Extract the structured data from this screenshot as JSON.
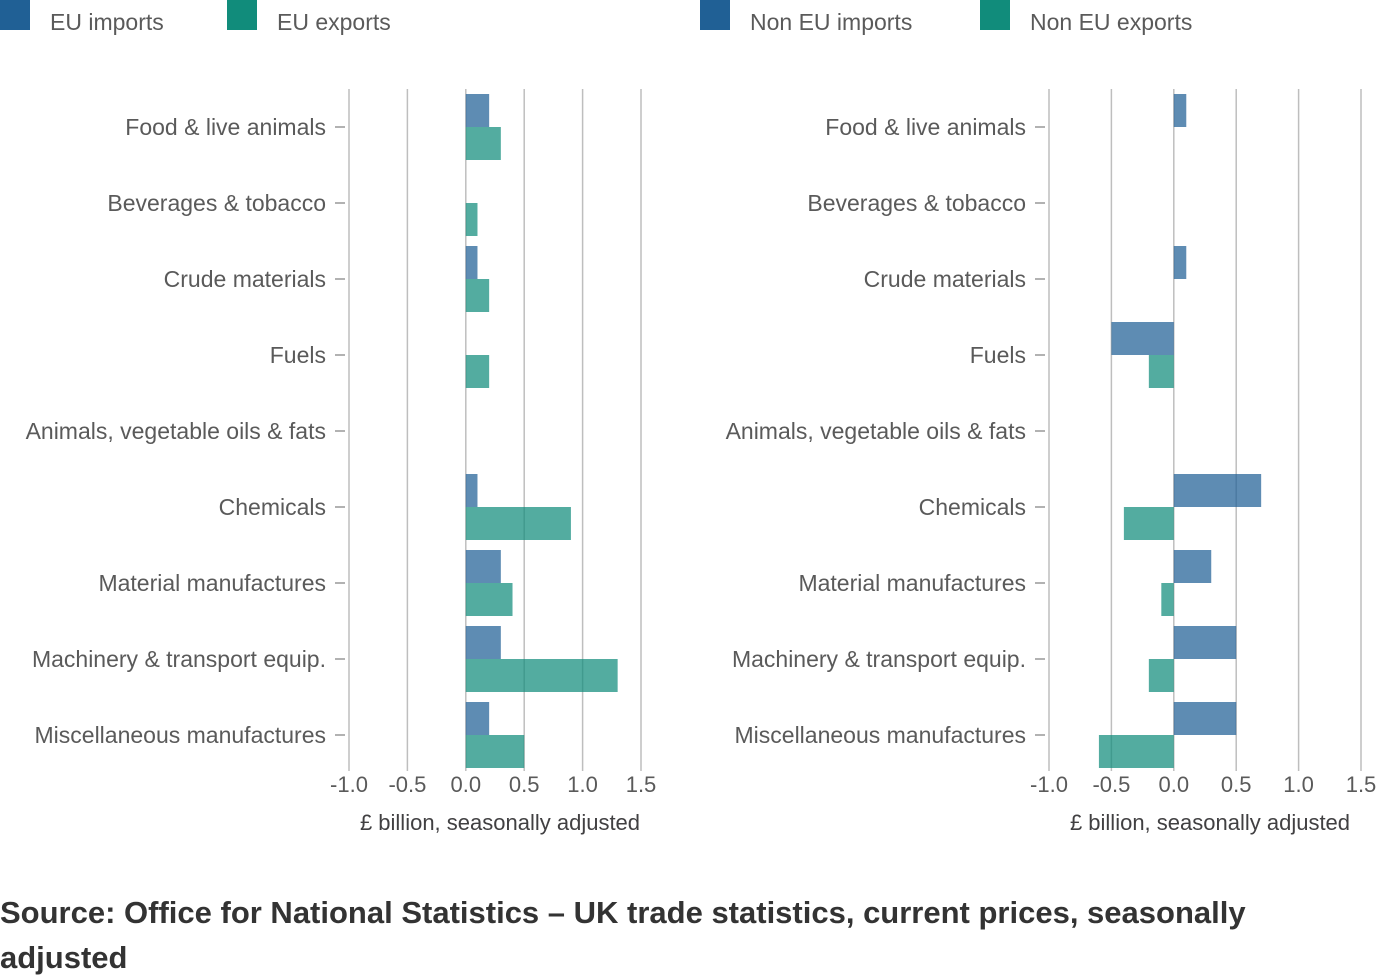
{
  "colors": {
    "imports": "#206095",
    "exports": "#118c7b",
    "grid": "#bebebe",
    "axis_tick": "#999999"
  },
  "source_text": "Source: Office for National Statistics – UK trade statistics, current prices, seasonally adjusted",
  "chart_data": [
    {
      "type": "bar",
      "orientation": "horizontal",
      "title": "",
      "xlabel": "£ billion, seasonally adjusted",
      "xlim": [
        -1.0,
        1.5
      ],
      "x_ticks": [
        "-1.0",
        "-0.5",
        "0.0",
        "0.5",
        "1.0",
        "1.5"
      ],
      "grid": true,
      "legend_position": "top-left",
      "categories": [
        "Food & live animals",
        "Beverages & tobacco",
        "Crude materials",
        "Fuels",
        "Animals, vegetable oils & fats",
        "Chemicals",
        "Material manufactures",
        "Machinery & transport equip.",
        "Miscellaneous manufactures"
      ],
      "series": [
        {
          "name": "EU imports",
          "color_key": "imports",
          "values": [
            0.2,
            0.0,
            0.1,
            0.0,
            0.0,
            0.1,
            0.3,
            0.3,
            0.2
          ]
        },
        {
          "name": "EU exports",
          "color_key": "exports",
          "values": [
            0.3,
            0.1,
            0.2,
            0.2,
            0.0,
            0.9,
            0.4,
            1.3,
            0.5
          ]
        }
      ]
    },
    {
      "type": "bar",
      "orientation": "horizontal",
      "title": "",
      "xlabel": "£ billion, seasonally adjusted",
      "xlim": [
        -1.0,
        1.5
      ],
      "x_ticks": [
        "-1.0",
        "-0.5",
        "0.0",
        "0.5",
        "1.0",
        "1.5"
      ],
      "grid": true,
      "legend_position": "top-left",
      "categories": [
        "Food & live animals",
        "Beverages & tobacco",
        "Crude materials",
        "Fuels",
        "Animals, vegetable oils & fats",
        "Chemicals",
        "Material manufactures",
        "Machinery & transport equip.",
        "Miscellaneous manufactures"
      ],
      "series": [
        {
          "name": "Non EU imports",
          "color_key": "imports",
          "values": [
            0.1,
            0.0,
            0.1,
            -0.5,
            0.0,
            0.7,
            0.3,
            0.5,
            0.5
          ]
        },
        {
          "name": "Non EU exports",
          "color_key": "exports",
          "values": [
            0.0,
            0.0,
            0.0,
            -0.2,
            0.0,
            -0.4,
            -0.1,
            -0.2,
            -0.6
          ]
        }
      ]
    }
  ]
}
